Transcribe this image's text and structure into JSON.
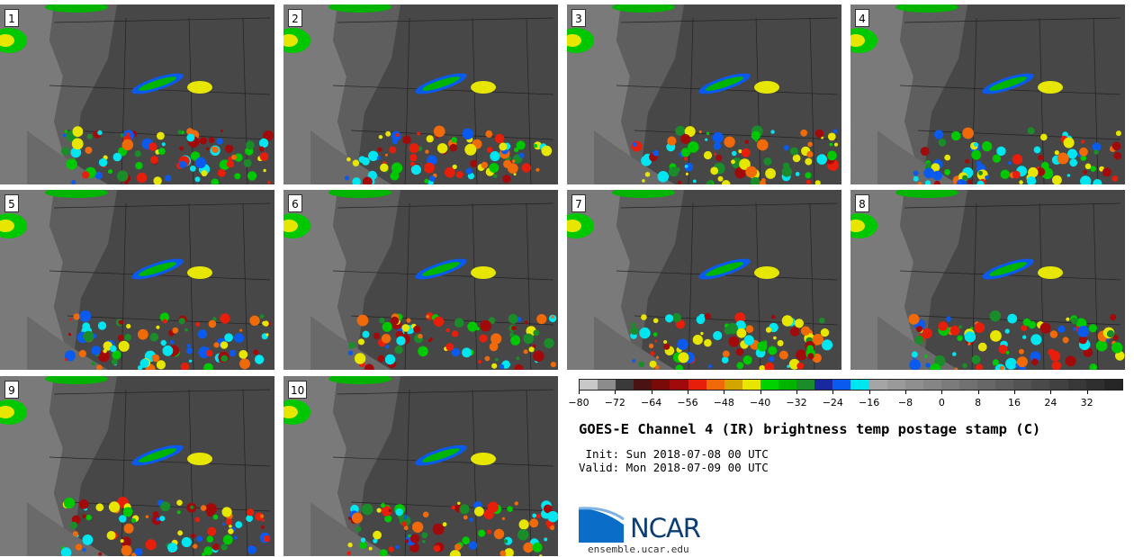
{
  "panels": [
    {
      "label": "1"
    },
    {
      "label": "2"
    },
    {
      "label": "3"
    },
    {
      "label": "4"
    },
    {
      "label": "5"
    },
    {
      "label": "6"
    },
    {
      "label": "7"
    },
    {
      "label": "8"
    },
    {
      "label": "9"
    },
    {
      "label": "10"
    }
  ],
  "colorbar": {
    "colors": [
      "#c8c8c8",
      "#8c8c8c",
      "#3a3a3a",
      "#4a1212",
      "#780a0a",
      "#a00a0a",
      "#e61e0a",
      "#f06a0a",
      "#d2a500",
      "#e6e600",
      "#00d200",
      "#00b400",
      "#1a8c2a",
      "#1a28a0",
      "#0a5af0",
      "#00e6f0",
      "#a5a5a5",
      "#9a9a9a",
      "#8f8f8f",
      "#858585",
      "#7b7b7b",
      "#717171",
      "#676767",
      "#5d5d5d",
      "#535353",
      "#4a4a4a",
      "#414141",
      "#383838",
      "#2f2f2f",
      "#262626"
    ],
    "tick_labels": [
      "−80",
      "−72",
      "−64",
      "−56",
      "−48",
      "−40",
      "−32",
      "−24",
      "−16",
      "−8",
      "0",
      "8",
      "16",
      "24",
      "32"
    ]
  },
  "title": "GOES-E Channel 4 (IR) brightness temp postage stamp (C)",
  "init": " Init: Sun 2018-07-08 00 UTC",
  "valid": "Valid: Mon 2018-07-09 00 UTC",
  "logo_text": "NCAR",
  "site": "ensemble.ucar.edu"
}
